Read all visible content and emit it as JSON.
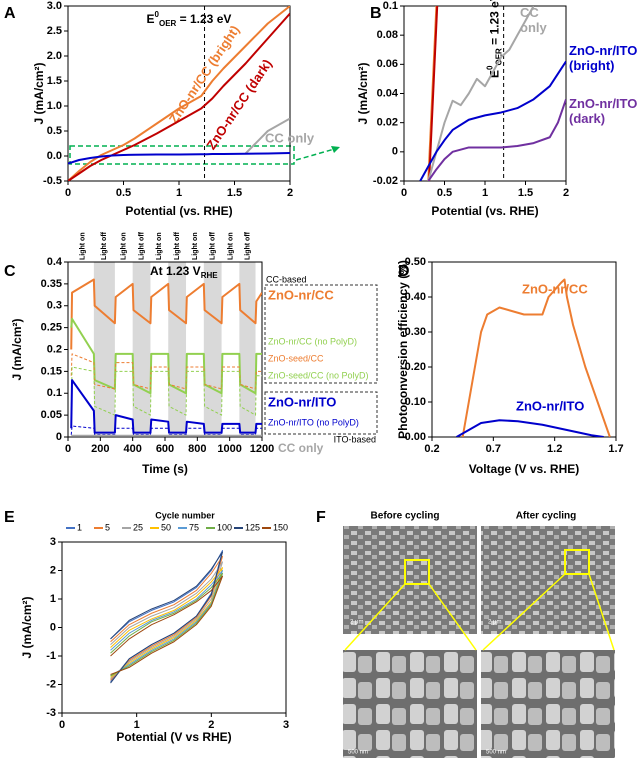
{
  "chart_data": [
    {
      "panel": "A",
      "type": "line",
      "xlabel": "Potential (vs. RHE)",
      "ylabel": "J (mA/cm²)",
      "xlim": [
        0,
        2
      ],
      "ylim": [
        -0.5,
        3.0
      ],
      "xticks": [
        0,
        0.5,
        1,
        1.5,
        2
      ],
      "yticks": [
        -0.5,
        {
          "value": 0,
          "label": "0.0"
        },
        0.5,
        {
          "value": 1,
          "label": "1.0"
        },
        1.5,
        {
          "value": 2,
          "label": "2.0"
        },
        2.5,
        {
          "value": 3,
          "label": "3.0"
        }
      ],
      "vline": 1.23,
      "annotation": {
        "base": "E",
        "sup": "0",
        "sub": "OER",
        "rest": " = 1.23 eV"
      },
      "x": [
        0,
        0.1,
        0.2,
        0.3,
        0.4,
        0.5,
        0.6,
        0.8,
        1.0,
        1.2,
        1.25,
        1.3,
        1.4,
        1.6,
        1.8,
        2.0
      ],
      "series": [
        {
          "name": "ZnO-nr/CC (bright)",
          "color": "#ed7d31",
          "values": [
            -0.5,
            -0.3,
            -0.12,
            0.02,
            0.12,
            0.22,
            0.35,
            0.65,
            0.95,
            1.2,
            1.35,
            1.5,
            1.75,
            2.2,
            2.65,
            3.0
          ]
        },
        {
          "name": "ZnO-nr/CC (dark)",
          "color": "#c00000",
          "values": [
            -0.5,
            -0.35,
            -0.2,
            -0.08,
            0.02,
            0.12,
            0.22,
            0.45,
            0.7,
            0.95,
            1.05,
            1.15,
            1.4,
            1.85,
            2.35,
            2.85
          ]
        },
        {
          "name": "CC only",
          "color": "#a6a6a6",
          "values": [
            null,
            null,
            null,
            null,
            null,
            null,
            null,
            null,
            null,
            null,
            null,
            null,
            null,
            0.05,
            0.5,
            0.75
          ]
        },
        {
          "color": "#0000cc",
          "values": [
            -0.15,
            -0.08,
            -0.04,
            -0.01,
            0.01,
            0.02,
            0.025,
            0.03,
            0.03,
            0.035,
            0.035,
            0.04,
            0.04,
            0.045,
            0.05,
            0.06
          ]
        }
      ]
    },
    {
      "panel": "B",
      "type": "line",
      "xlabel": "Potential (vs. RHE)",
      "ylabel": "J (mA/cm²)",
      "xlim": [
        0,
        2
      ],
      "ylim": [
        -0.02,
        0.1
      ],
      "xticks": [
        0,
        0.5,
        1,
        1.5,
        2
      ],
      "yticks": [
        -0.02,
        0,
        0.02,
        0.04,
        0.06,
        0.08,
        0.1
      ],
      "vline": 1.23,
      "annotation": {
        "base": "E",
        "sup": "0",
        "sub": "OER",
        "rest": " = 1.23 eV"
      },
      "series": [
        {
          "color": "#ed7d31",
          "x": [
            0.3,
            0.4
          ],
          "values": [
            -0.02,
            0.1
          ]
        },
        {
          "color": "#c00000",
          "x": [
            0.31,
            0.41
          ],
          "values": [
            -0.02,
            0.1
          ]
        },
        {
          "name": "CC only",
          "color": "#a6a6a6",
          "x": [
            0.3,
            0.4,
            0.5,
            0.6,
            0.7,
            0.8,
            0.9,
            1.0,
            1.1,
            1.2,
            1.3,
            1.4,
            1.5,
            1.6
          ],
          "values": [
            -0.02,
            0.0,
            0.02,
            0.035,
            0.032,
            0.04,
            0.05,
            0.045,
            0.055,
            0.065,
            0.07,
            0.08,
            0.09,
            0.1
          ]
        },
        {
          "name": "ZnO-nr/ITO (bright)",
          "color": "#0000cc",
          "x": [
            0.2,
            0.3,
            0.4,
            0.5,
            0.6,
            0.8,
            1.0,
            1.2,
            1.4,
            1.6,
            1.8,
            2.0
          ],
          "values": [
            -0.02,
            -0.01,
            0.0,
            0.008,
            0.015,
            0.022,
            0.025,
            0.027,
            0.03,
            0.036,
            0.045,
            0.062
          ]
        },
        {
          "name": "ZnO-nr/ITO (dark)",
          "color": "#7030a0",
          "x": [
            0.3,
            0.4,
            0.5,
            0.6,
            0.8,
            1.0,
            1.2,
            1.4,
            1.6,
            1.8,
            1.9,
            2.0
          ],
          "values": [
            -0.02,
            -0.012,
            -0.005,
            0.0,
            0.003,
            0.003,
            0.003,
            0.004,
            0.006,
            0.01,
            0.02,
            0.036
          ]
        }
      ]
    },
    {
      "panel": "C",
      "type": "line",
      "xlabel": "Time (s)",
      "ylabel": "J (mA/cm²)",
      "xlim": [
        0,
        1200
      ],
      "ylim": [
        0,
        0.4
      ],
      "xticks": [
        0,
        200,
        400,
        600,
        800,
        1000,
        1200
      ],
      "yticks": [
        0,
        0.05,
        0.1,
        0.15,
        0.2,
        0.25,
        0.3,
        0.35,
        0.4
      ],
      "condition": {
        "text": "At 1.23 V",
        "sub": "RHE"
      },
      "group_labels": [
        "CC-based",
        "ITO-based"
      ],
      "light_labels": [
        "Light on",
        "Light off",
        "Light on",
        "Light off",
        "Light on",
        "Light off",
        "Light on",
        "Light off",
        "Light on",
        "Light off"
      ],
      "off_periods": [
        [
          160,
          290
        ],
        [
          400,
          510
        ],
        [
          620,
          730
        ],
        [
          840,
          950
        ],
        [
          1060,
          1160
        ]
      ],
      "x": [
        20,
        25,
        160,
        165,
        290,
        295,
        400,
        405,
        510,
        515,
        620,
        625,
        730,
        735,
        840,
        845,
        950,
        955,
        1060,
        1065,
        1160,
        1165,
        1200
      ],
      "series": [
        {
          "name": "ZnO-nr/CC",
          "color": "#ed7d31",
          "bold": true,
          "values": [
            0.2,
            0.33,
            0.36,
            0.3,
            0.26,
            0.32,
            0.35,
            0.29,
            0.26,
            0.32,
            0.35,
            0.29,
            0.26,
            0.32,
            0.35,
            0.29,
            0.26,
            0.32,
            0.35,
            0.29,
            0.26,
            0.31,
            0.33
          ]
        },
        {
          "name": "ZnO-nr/CC (no PolyD)",
          "color": "#92d050",
          "values": [
            0.25,
            0.27,
            0.19,
            0.13,
            0.11,
            0.19,
            0.19,
            0.12,
            0.1,
            0.19,
            0.19,
            0.12,
            0.1,
            0.19,
            0.19,
            0.12,
            0.1,
            0.19,
            0.19,
            0.12,
            0.1,
            0.19,
            0.19
          ]
        },
        {
          "name": "ZnO-seed/CC",
          "color": "#ed7d31",
          "dashed": true,
          "values": [
            0.14,
            0.19,
            0.17,
            0.12,
            0.11,
            0.17,
            0.17,
            0.12,
            0.11,
            0.16,
            0.16,
            0.12,
            0.11,
            0.16,
            0.16,
            0.12,
            0.11,
            0.16,
            0.16,
            0.12,
            0.11,
            0.15,
            0.15
          ]
        },
        {
          "name": "ZnO-seed/CC (no PolyD)",
          "color": "#92d050",
          "dashed": true,
          "values": [
            0.05,
            0.16,
            0.15,
            0.07,
            0.05,
            0.15,
            0.15,
            0.07,
            0.05,
            0.15,
            0.15,
            0.07,
            0.05,
            0.15,
            0.15,
            0.07,
            0.05,
            0.15,
            0.15,
            0.07,
            0.05,
            0.14,
            0.14
          ]
        },
        {
          "name": "ZnO-nr/ITO",
          "color": "#0000cc",
          "bold": true,
          "values": [
            0.02,
            0.13,
            0.06,
            0.01,
            0.01,
            0.05,
            0.04,
            0.01,
            0.01,
            0.04,
            0.035,
            0.01,
            0.01,
            0.035,
            0.03,
            0.01,
            0.01,
            0.03,
            0.03,
            0.01,
            0.01,
            0.03,
            0.03
          ]
        },
        {
          "name": "ZnO-nr/ITO (no PolyD)",
          "color": "#0000cc",
          "dashed": true,
          "values": [
            0.005,
            0.025,
            0.02,
            0.005,
            0.005,
            0.02,
            0.02,
            0.005,
            0.005,
            0.02,
            0.02,
            0.005,
            0.005,
            0.02,
            0.02,
            0.005,
            0.005,
            0.02,
            0.02,
            0.005,
            0.005,
            0.02,
            0.02
          ]
        },
        {
          "name": "CC only",
          "color": "#a6a6a6",
          "bold": true,
          "values": [
            0.003,
            0.003,
            0.003,
            0.003,
            0.003,
            0.003,
            0.003,
            0.003,
            0.003,
            0.003,
            0.003,
            0.003,
            0.003,
            0.003,
            0.003,
            0.003,
            0.003,
            0.003,
            0.003,
            0.003,
            0.003,
            0.003,
            0.003
          ]
        }
      ]
    },
    {
      "panel": "D",
      "type": "line",
      "xlabel": "Voltage (V vs. RHE)",
      "ylabel": "Photoconversion efficiency (%)",
      "xlim": [
        0.2,
        1.7
      ],
      "ylim": [
        0,
        0.5
      ],
      "xticks": [
        0.2,
        0.7,
        1.2,
        1.7
      ],
      "yticks": [
        {
          "value": 0,
          "label": "0.00"
        },
        {
          "value": 0.1,
          "label": "0.10"
        },
        {
          "value": 0.2,
          "label": "0.20"
        },
        {
          "value": 0.3,
          "label": "0.30"
        },
        {
          "value": 0.4,
          "label": "0.40"
        },
        {
          "value": 0.5,
          "label": "0.50"
        }
      ],
      "series": [
        {
          "name": "ZnO-nr/CC",
          "color": "#ed7d31",
          "x": [
            0.45,
            0.5,
            0.55,
            0.6,
            0.65,
            0.75,
            0.85,
            0.95,
            1.05,
            1.1,
            1.15,
            1.2,
            1.25,
            1.28,
            1.3,
            1.35,
            1.45,
            1.55,
            1.65
          ],
          "values": [
            0,
            0.1,
            0.2,
            0.3,
            0.35,
            0.37,
            0.36,
            0.35,
            0.35,
            0.35,
            0.4,
            0.42,
            0.44,
            0.45,
            0.4,
            0.32,
            0.2,
            0.1,
            0
          ]
        },
        {
          "name": "ZnO-nr/ITO",
          "color": "#0000cc",
          "x": [
            0.4,
            0.5,
            0.6,
            0.75,
            0.9,
            1.1,
            1.3,
            1.5,
            1.6
          ],
          "values": [
            0,
            0.02,
            0.04,
            0.048,
            0.045,
            0.035,
            0.02,
            0.005,
            0
          ]
        }
      ]
    },
    {
      "panel": "E",
      "type": "line",
      "xlabel": "Potential (V vs RHE)",
      "ylabel": "J (mA/cm²)",
      "legend_title": "Cycle number",
      "xlim": [
        0,
        3
      ],
      "ylim": [
        -3,
        3
      ],
      "xticks": [
        0,
        1,
        2,
        3
      ],
      "yticks": [
        -3,
        -2,
        -1,
        0,
        1,
        2,
        3
      ],
      "x": [
        0.65,
        0.9,
        1.2,
        1.5,
        1.8,
        2.0,
        2.15,
        2.0,
        1.8,
        1.5,
        1.2,
        0.9,
        0.65
      ],
      "series": [
        {
          "name": "1",
          "color": "#4472c4",
          "values": [
            -0.4,
            0.2,
            0.6,
            0.9,
            1.4,
            2.0,
            2.7,
            1.2,
            0.4,
            -0.2,
            -0.6,
            -1.1,
            -1.9
          ]
        },
        {
          "name": "5",
          "color": "#ed7d31",
          "values": [
            -0.5,
            0.1,
            0.5,
            0.8,
            1.3,
            1.9,
            2.5,
            1.1,
            0.35,
            -0.25,
            -0.65,
            -1.15,
            -1.85
          ]
        },
        {
          "name": "25",
          "color": "#a5a5a5",
          "values": [
            -0.6,
            0.0,
            0.4,
            0.7,
            1.2,
            1.7,
            2.3,
            1.0,
            0.3,
            -0.3,
            -0.7,
            -1.2,
            -1.8
          ]
        },
        {
          "name": "50",
          "color": "#ffc000",
          "values": [
            -0.7,
            -0.1,
            0.3,
            0.6,
            1.1,
            1.6,
            2.1,
            0.9,
            0.25,
            -0.35,
            -0.75,
            -1.25,
            -1.75
          ]
        },
        {
          "name": "75",
          "color": "#5b9bd5",
          "values": [
            -0.8,
            -0.2,
            0.25,
            0.55,
            1.0,
            1.5,
            2.0,
            0.85,
            0.2,
            -0.4,
            -0.8,
            -1.3,
            -1.7
          ]
        },
        {
          "name": "100",
          "color": "#70ad47",
          "values": [
            -0.9,
            -0.3,
            0.2,
            0.5,
            0.95,
            1.4,
            1.9,
            0.8,
            0.15,
            -0.45,
            -0.85,
            -1.35,
            -1.7
          ]
        },
        {
          "name": "125",
          "color": "#264478",
          "values": [
            -0.4,
            0.25,
            0.65,
            0.95,
            1.45,
            2.05,
            2.65,
            1.15,
            0.4,
            -0.2,
            -0.6,
            -1.1,
            -1.95
          ]
        },
        {
          "name": "150",
          "color": "#9e480e",
          "values": [
            -1.0,
            -0.4,
            0.1,
            0.45,
            0.9,
            1.3,
            1.8,
            0.75,
            0.1,
            -0.5,
            -0.9,
            -1.4,
            -1.65
          ]
        }
      ]
    }
  ],
  "panel_f": {
    "panel": "F",
    "before": "Before cycling",
    "after": "After cycling",
    "scale_bars": [
      "2 μm",
      "2 μm",
      "500 nm",
      "500 nm"
    ]
  }
}
